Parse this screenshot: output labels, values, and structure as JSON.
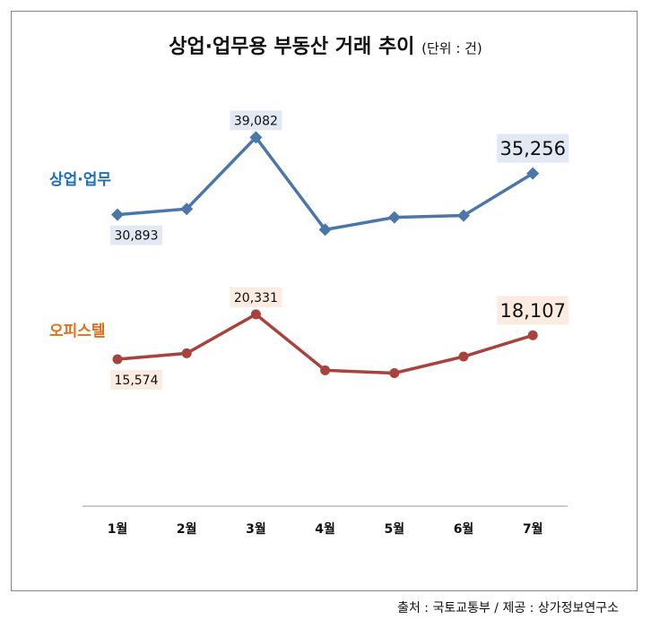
{
  "title": "상업·업무용 부동산 거래 추이",
  "unit": "(단위 : 건)",
  "source": "출처 : 국토교통부 / 제공 : 상가정보연구소",
  "chart_data": {
    "type": "line",
    "categories": [
      "1월",
      "2월",
      "3월",
      "4월",
      "5월",
      "6월",
      "7월"
    ],
    "ylim": [
      0,
      45000
    ],
    "grid": false,
    "series": [
      {
        "name": "상업·업무",
        "color": "#4A76A8",
        "label_color": "#1F6FB5",
        "label_bg": "#E3E9F2",
        "values": [
          30893,
          31500,
          39082,
          29300,
          30600,
          30800,
          35256
        ],
        "data_labels": {
          "0": "30,893",
          "2": "39,082",
          "6": "35,256"
        }
      },
      {
        "name": "오피스텔",
        "color": "#A8423C",
        "label_color": "#E0701A",
        "label_bg": "#FBEBE0",
        "values": [
          15574,
          16200,
          20331,
          14400,
          14100,
          15850,
          18107
        ],
        "data_labels": {
          "0": "15,574",
          "2": "20,331",
          "6": "18,107"
        }
      }
    ]
  }
}
